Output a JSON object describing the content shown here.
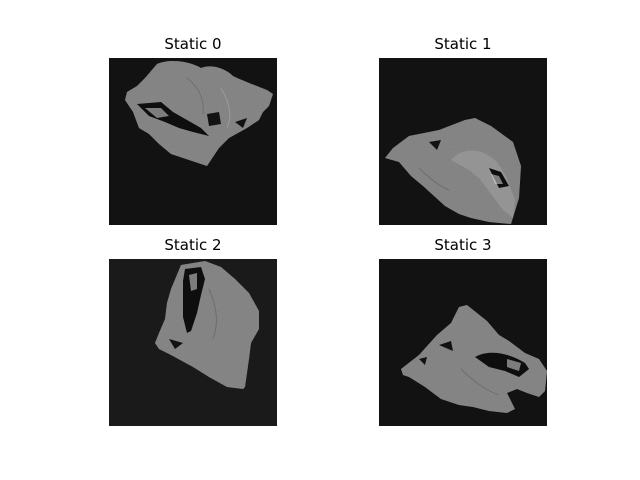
{
  "figure": {
    "panels": [
      {
        "title": "Static 0"
      },
      {
        "title": "Static 1"
      },
      {
        "title": "Static 2"
      },
      {
        "title": "Static 3"
      }
    ]
  },
  "colors": {
    "background": "#ffffff",
    "image_background": "#121212",
    "tissue": "#8a8a8a",
    "tissue_dark": "#6e6e6e",
    "tissue_light": "#a8a8a8"
  }
}
